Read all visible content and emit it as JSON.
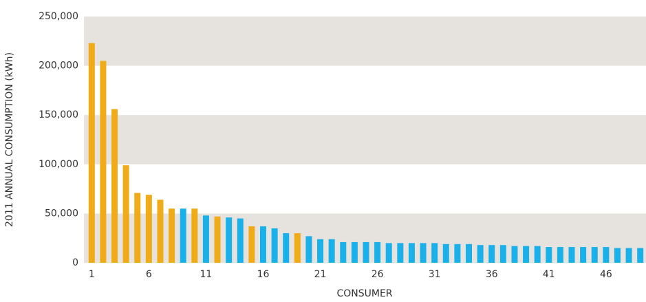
{
  "chart_data": {
    "type": "bar",
    "y_label": "2011 ANNUAL CONSUMPTION (kWh)",
    "x_label": "CONSUMER",
    "categories": [
      "1",
      null,
      null,
      null,
      null,
      "6",
      null,
      null,
      null,
      null,
      "11",
      null,
      null,
      null,
      null,
      "16",
      null,
      null,
      null,
      null,
      "21",
      null,
      null,
      null,
      null,
      "26",
      null,
      null,
      null,
      null,
      "31",
      null,
      null,
      null,
      null,
      "36",
      null,
      null,
      null,
      null,
      "41",
      null,
      null,
      null,
      null,
      "46",
      null,
      null,
      null
    ],
    "values": [
      223000,
      205000,
      156000,
      99000,
      71000,
      69000,
      64000,
      55000,
      55000,
      55000,
      48000,
      47000,
      46000,
      45000,
      37000,
      37000,
      35000,
      30000,
      30000,
      27000,
      24000,
      24000,
      21000,
      21000,
      21000,
      21000,
      20000,
      20000,
      20000,
      20000,
      20000,
      19000,
      19000,
      19000,
      18000,
      18000,
      18000,
      17000,
      17000,
      17000,
      16000,
      16000,
      16000,
      16000,
      16000,
      16000,
      15000,
      15000,
      15000
    ],
    "colors": [
      "#f0ab19",
      "#f0ab19",
      "#f0ab19",
      "#f0ab19",
      "#f0ab19",
      "#f0ab19",
      "#f0ab19",
      "#f0ab19",
      "#1ab0ea",
      "#f0ab19",
      "#1ab0ea",
      "#f0ab19",
      "#1ab0ea",
      "#1ab0ea",
      "#f0ab19",
      "#1ab0ea",
      "#1ab0ea",
      "#1ab0ea",
      "#f0ab19",
      "#1ab0ea",
      "#1ab0ea",
      "#1ab0ea",
      "#1ab0ea",
      "#1ab0ea",
      "#1ab0ea",
      "#1ab0ea",
      "#1ab0ea",
      "#1ab0ea",
      "#1ab0ea",
      "#1ab0ea",
      "#1ab0ea",
      "#1ab0ea",
      "#1ab0ea",
      "#1ab0ea",
      "#1ab0ea",
      "#1ab0ea",
      "#1ab0ea",
      "#1ab0ea",
      "#1ab0ea",
      "#1ab0ea",
      "#1ab0ea",
      "#1ab0ea",
      "#1ab0ea",
      "#1ab0ea",
      "#1ab0ea",
      "#1ab0ea",
      "#1ab0ea",
      "#1ab0ea",
      "#1ab0ea"
    ],
    "ylim": [
      0,
      250000
    ],
    "yticks": [
      0,
      {
        "value": 50000,
        "label": "50,000"
      },
      {
        "value": 100000,
        "label": "100,000"
      },
      {
        "value": 150000,
        "label": "150,000"
      },
      {
        "value": 200000,
        "label": "200,000"
      },
      {
        "value": 250000,
        "label": "250,000"
      }
    ],
    "grid": "bands",
    "band_color": "#e6e2dd"
  }
}
